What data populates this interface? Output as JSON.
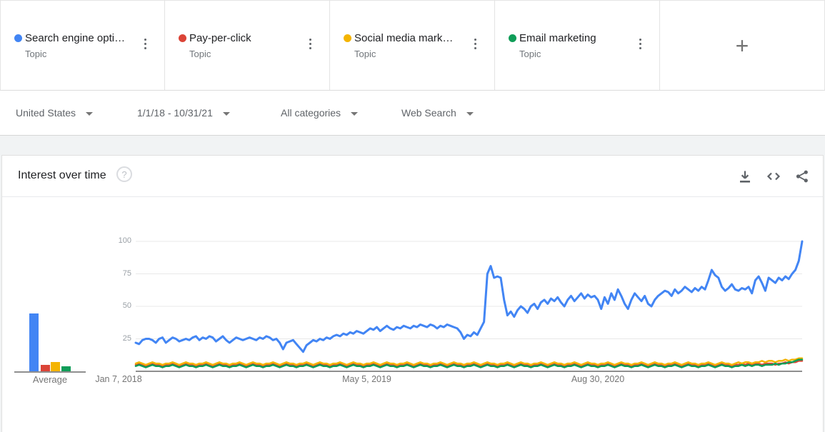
{
  "compare_bar": {
    "cards": [
      {
        "label": "Search engine opti…",
        "sublabel": "Topic",
        "color": "#4285f4"
      },
      {
        "label": "Pay-per-click",
        "sublabel": "Topic",
        "color": "#db4437"
      },
      {
        "label": "Social media mark…",
        "sublabel": "Topic",
        "color": "#f4b400"
      },
      {
        "label": "Email marketing",
        "sublabel": "Topic",
        "color": "#0f9d58"
      }
    ],
    "add_label": "+"
  },
  "filter_bar": {
    "geo": "United States",
    "time": "1/1/18 - 10/31/21",
    "category": "All categories",
    "search_type": "Web Search"
  },
  "widget": {
    "title": "Interest over time",
    "help_glyph": "?"
  },
  "chart_data": {
    "type": "line",
    "title": "Interest over time",
    "x_unit": "weekly",
    "x_range": [
      "Jan 7, 2018",
      "Oct 31, 2021"
    ],
    "ylim": [
      0,
      100
    ],
    "y_ticks": [
      25,
      50,
      75,
      100
    ],
    "grid": true,
    "average_label": "Average",
    "x_ticks": [
      {
        "i": 0,
        "label": "Jan 7, 2018"
      },
      {
        "i": 69,
        "label": "May 5, 2019"
      },
      {
        "i": 138,
        "label": "Aug 30, 2020"
      }
    ],
    "series": [
      {
        "name": "Search engine opti…",
        "color": "#4285f4",
        "average": 45,
        "values": [
          22,
          21,
          24,
          25,
          25,
          24,
          22,
          25,
          26,
          22,
          24,
          26,
          25,
          23,
          24,
          25,
          24,
          26,
          27,
          24,
          26,
          25,
          27,
          26,
          23,
          25,
          27,
          24,
          22,
          24,
          26,
          25,
          24,
          25,
          26,
          25,
          24,
          26,
          25,
          27,
          26,
          24,
          25,
          22,
          17,
          22,
          23,
          24,
          21,
          18,
          15,
          20,
          22,
          24,
          23,
          25,
          24,
          26,
          25,
          27,
          28,
          27,
          29,
          28,
          30,
          29,
          31,
          30,
          29,
          31,
          33,
          32,
          34,
          31,
          33,
          35,
          33,
          32,
          34,
          33,
          35,
          34,
          33,
          35,
          34,
          36,
          35,
          34,
          36,
          35,
          33,
          35,
          34,
          36,
          35,
          34,
          33,
          30,
          25,
          28,
          27,
          30,
          28,
          33,
          38,
          75,
          81,
          72,
          73,
          72,
          55,
          43,
          46,
          42,
          47,
          50,
          48,
          45,
          50,
          52,
          48,
          53,
          55,
          52,
          56,
          54,
          57,
          53,
          50,
          55,
          58,
          54,
          57,
          60,
          56,
          59,
          57,
          58,
          55,
          48,
          57,
          52,
          60,
          55,
          63,
          58,
          52,
          48,
          55,
          60,
          57,
          54,
          58,
          52,
          50,
          55,
          58,
          60,
          62,
          61,
          58,
          63,
          60,
          62,
          65,
          63,
          61,
          64,
          62,
          65,
          63,
          70,
          78,
          74,
          72,
          65,
          62,
          64,
          67,
          63,
          62,
          64,
          63,
          65,
          60,
          70,
          73,
          68,
          62,
          72,
          70,
          68,
          72,
          70,
          73,
          71,
          75,
          78,
          85,
          100
        ]
      },
      {
        "name": "Pay-per-click",
        "color": "#db4437",
        "average": 5,
        "values": [
          5,
          6,
          5,
          4,
          5,
          6,
          5,
          5,
          4,
          5,
          5,
          6,
          5,
          4,
          5,
          6,
          5,
          5,
          4,
          5,
          5,
          6,
          5,
          4,
          5,
          6,
          5,
          5,
          4,
          5,
          5,
          6,
          5,
          4,
          5,
          6,
          5,
          5,
          4,
          5,
          5,
          6,
          5,
          4,
          5,
          6,
          5,
          5,
          4,
          5,
          5,
          6,
          5,
          4,
          5,
          6,
          5,
          5,
          4,
          5,
          5,
          6,
          5,
          4,
          5,
          6,
          5,
          5,
          4,
          5,
          5,
          6,
          5,
          4,
          5,
          6,
          5,
          5,
          4,
          5,
          5,
          6,
          5,
          4,
          5,
          6,
          5,
          5,
          4,
          5,
          5,
          6,
          5,
          4,
          5,
          6,
          5,
          5,
          4,
          5,
          5,
          6,
          5,
          4,
          5,
          6,
          5,
          5,
          4,
          5,
          5,
          6,
          5,
          4,
          5,
          6,
          5,
          5,
          4,
          5,
          5,
          6,
          5,
          4,
          5,
          6,
          5,
          5,
          4,
          5,
          5,
          6,
          5,
          4,
          5,
          6,
          5,
          5,
          4,
          5,
          5,
          6,
          5,
          4,
          5,
          6,
          5,
          5,
          4,
          5,
          5,
          6,
          5,
          4,
          5,
          6,
          5,
          5,
          4,
          5,
          5,
          6,
          5,
          4,
          5,
          6,
          5,
          5,
          4,
          5,
          5,
          6,
          5,
          4,
          5,
          6,
          5,
          5,
          4,
          5,
          5,
          6,
          5,
          6,
          5,
          6,
          6,
          5,
          6,
          6,
          6,
          5,
          6,
          6,
          7,
          6,
          7,
          7,
          8,
          8
        ]
      },
      {
        "name": "Social media mark…",
        "color": "#f4b400",
        "average": 7,
        "values": [
          6,
          7,
          6,
          5,
          6,
          7,
          6,
          6,
          5,
          6,
          6,
          7,
          6,
          5,
          6,
          7,
          6,
          6,
          5,
          6,
          6,
          7,
          6,
          5,
          6,
          7,
          6,
          6,
          5,
          6,
          6,
          7,
          6,
          5,
          6,
          7,
          6,
          6,
          5,
          6,
          6,
          7,
          6,
          5,
          6,
          7,
          6,
          6,
          5,
          6,
          6,
          7,
          6,
          5,
          6,
          7,
          6,
          6,
          5,
          6,
          6,
          7,
          6,
          5,
          6,
          7,
          6,
          6,
          5,
          6,
          6,
          7,
          6,
          5,
          6,
          7,
          6,
          6,
          5,
          6,
          6,
          7,
          6,
          5,
          6,
          7,
          6,
          6,
          5,
          6,
          6,
          7,
          6,
          5,
          6,
          7,
          6,
          6,
          5,
          6,
          6,
          7,
          6,
          5,
          6,
          7,
          6,
          6,
          5,
          6,
          6,
          7,
          6,
          5,
          6,
          7,
          6,
          6,
          5,
          6,
          6,
          7,
          6,
          5,
          6,
          7,
          6,
          6,
          5,
          6,
          6,
          7,
          6,
          5,
          6,
          7,
          6,
          6,
          5,
          6,
          6,
          7,
          6,
          5,
          6,
          7,
          6,
          6,
          5,
          6,
          6,
          7,
          6,
          5,
          6,
          7,
          6,
          6,
          5,
          6,
          6,
          7,
          6,
          5,
          6,
          7,
          6,
          6,
          5,
          6,
          6,
          7,
          6,
          5,
          6,
          7,
          6,
          6,
          5,
          6,
          7,
          6,
          7,
          7,
          6,
          7,
          7,
          8,
          7,
          8,
          8,
          7,
          8,
          8,
          9,
          8,
          9,
          9,
          10,
          10
        ]
      },
      {
        "name": "Email marketing",
        "color": "#0f9d58",
        "average": 4,
        "values": [
          4,
          5,
          4,
          3,
          4,
          5,
          4,
          4,
          3,
          4,
          4,
          5,
          4,
          3,
          4,
          5,
          4,
          4,
          3,
          4,
          4,
          5,
          4,
          3,
          4,
          5,
          4,
          4,
          3,
          4,
          4,
          5,
          4,
          3,
          4,
          5,
          4,
          4,
          3,
          4,
          4,
          5,
          4,
          3,
          4,
          5,
          4,
          4,
          3,
          4,
          4,
          5,
          4,
          3,
          4,
          5,
          4,
          4,
          3,
          4,
          4,
          5,
          4,
          3,
          4,
          5,
          4,
          4,
          3,
          4,
          4,
          5,
          4,
          3,
          4,
          5,
          4,
          4,
          3,
          4,
          4,
          5,
          4,
          3,
          4,
          5,
          4,
          4,
          3,
          4,
          4,
          5,
          4,
          3,
          4,
          5,
          4,
          4,
          3,
          4,
          4,
          5,
          4,
          3,
          4,
          5,
          4,
          4,
          3,
          4,
          4,
          5,
          4,
          3,
          4,
          5,
          4,
          4,
          3,
          4,
          4,
          5,
          4,
          3,
          4,
          5,
          4,
          4,
          3,
          4,
          4,
          5,
          4,
          3,
          4,
          5,
          4,
          4,
          3,
          4,
          4,
          5,
          4,
          3,
          4,
          5,
          4,
          4,
          3,
          4,
          4,
          5,
          4,
          3,
          4,
          5,
          4,
          4,
          3,
          4,
          4,
          5,
          4,
          3,
          4,
          5,
          4,
          4,
          3,
          4,
          4,
          5,
          4,
          3,
          4,
          5,
          4,
          4,
          3,
          4,
          4,
          5,
          4,
          5,
          4,
          5,
          5,
          4,
          5,
          5,
          5,
          6,
          5,
          6,
          6,
          7,
          7,
          8,
          9,
          9
        ]
      }
    ]
  }
}
